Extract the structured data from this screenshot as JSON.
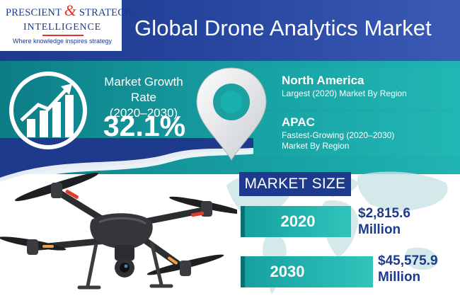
{
  "logo": {
    "brand_left": "PRESCIENT",
    "ampersand": "&",
    "brand_right": "STRATEGIC",
    "brand_line2": "INTELLIGENCE",
    "tagline": "Where knowledge inspires strategy"
  },
  "header": {
    "title": "Global Drone Analytics Market"
  },
  "growth": {
    "label_line1": "Market Growth Rate",
    "label_line2": "(2020–2030)",
    "value": "32.1%"
  },
  "regions": [
    {
      "name": "North America",
      "desc_line1": "Largest (2020) Market By Region",
      "desc_line2": ""
    },
    {
      "name": "APAC",
      "desc_line1": "Fastest-Growing (2020–2030)",
      "desc_line2": "Market By Region"
    }
  ],
  "market_size": {
    "heading": "MARKET SIZE",
    "rows": [
      {
        "year": "2020",
        "amount": "$2,815.6",
        "unit": "Million"
      },
      {
        "year": "2030",
        "amount": "$45,575.9",
        "unit": "Million"
      }
    ]
  },
  "icons": [
    "growth-chart-icon",
    "location-pin-icon",
    "drone-image",
    "world-map"
  ],
  "colors": {
    "navy": "#1d3a8c",
    "teal": "#17a2a3",
    "accent_red": "#e5322d"
  }
}
